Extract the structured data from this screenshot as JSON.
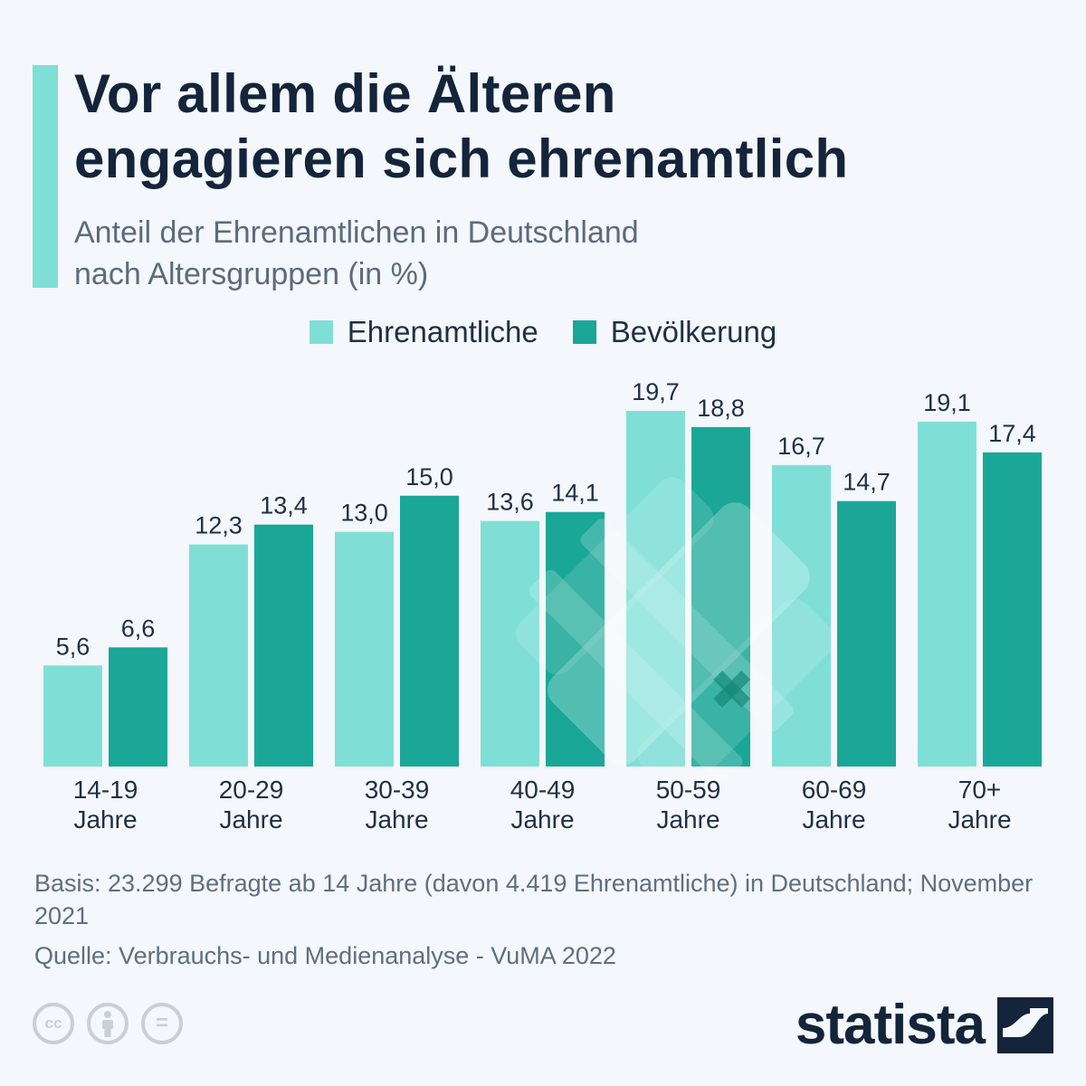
{
  "header": {
    "title_line1": "Vor allem die Älteren",
    "title_line2": "engagieren sich ehrenamtlich",
    "subtitle_line1": "Anteil der Ehrenamtlichen in Deutschland",
    "subtitle_line2": "nach Altersgruppen (in %)"
  },
  "colors": {
    "accent": "#7fdfd7",
    "series_light": "#7fdfd7",
    "series_dark": "#1aa797",
    "text_dark": "#13243b"
  },
  "chart_data": {
    "type": "bar",
    "categories": [
      [
        "14-19",
        "Jahre"
      ],
      [
        "20-29",
        "Jahre"
      ],
      [
        "30-39",
        "Jahre"
      ],
      [
        "40-49",
        "Jahre"
      ],
      [
        "50-59",
        "Jahre"
      ],
      [
        "60-69",
        "Jahre"
      ],
      [
        "70+",
        "Jahre"
      ]
    ],
    "series": [
      {
        "name": "Ehrenamtliche",
        "color": "#7fdfd7",
        "values": [
          5.6,
          12.3,
          13.0,
          13.6,
          19.7,
          16.7,
          19.1
        ]
      },
      {
        "name": "Bevölkerung",
        "color": "#1aa797",
        "values": [
          6.6,
          13.4,
          15.0,
          14.1,
          18.8,
          14.7,
          17.4
        ]
      }
    ],
    "value_labels": [
      [
        "5,6",
        "12,3",
        "13,0",
        "13,6",
        "19,7",
        "16,7",
        "19,1"
      ],
      [
        "6,6",
        "13,4",
        "15,0",
        "14,1",
        "18,8",
        "14,7",
        "17,4"
      ]
    ],
    "ylim": [
      0,
      21
    ],
    "grid": false,
    "legend_position": "top-center",
    "decoration": "life-vest-icon"
  },
  "footer": {
    "basis": "Basis: 23.299 Befragte ab 14 Jahre (davon 4.419 Ehrenamtliche) in Deutschland; November 2021",
    "source": "Quelle: Verbrauchs- und Medienanalyse - VuMA 2022",
    "license_icons": [
      "cc-icon",
      "attribution-icon",
      "no-derivatives-icon"
    ],
    "license_glyphs": [
      "cc",
      "="
    ],
    "brand": "statista"
  }
}
